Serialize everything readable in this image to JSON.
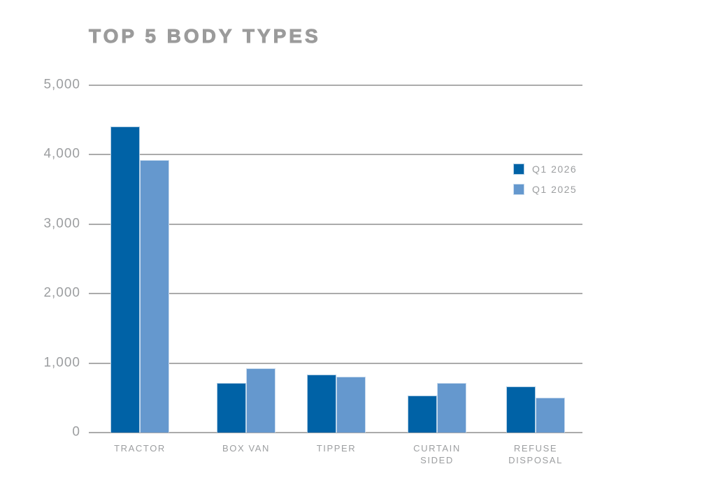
{
  "chart": {
    "title_color": "#9b9b9b",
    "text_color": "#9c9ea0",
    "gridline_color": "#ababab",
    "background_color": "#ffffff"
  },
  "chart_data": {
    "type": "bar",
    "title": "TOP 5 BODY TYPES",
    "categories": [
      "TRACTOR",
      "BOX VAN",
      "TIPPER",
      "CURTAIN SIDED",
      "REFUSE DISPOSAL"
    ],
    "category_label_lines": [
      [
        "TRACTOR"
      ],
      [
        "BOX VAN"
      ],
      [
        "TIPPER"
      ],
      [
        "CURTAIN",
        "SIDED"
      ],
      [
        "REFUSE",
        "DISPOSAL"
      ]
    ],
    "series": [
      {
        "name": "Q1 2026",
        "color": "#0062a6",
        "values": [
          4410,
          710,
          840,
          530,
          660
        ]
      },
      {
        "name": "Q1 2025",
        "color": "#6598ce",
        "values": [
          3920,
          930,
          800,
          710,
          500
        ]
      }
    ],
    "xlabel": "",
    "ylabel": "",
    "ylim": [
      0,
      5000
    ],
    "ytick_interval": 1000,
    "ytick_labels": [
      "0",
      "1,000",
      "2,000",
      "3,000",
      "4,000",
      "5,000"
    ],
    "grid": true,
    "legend_position": "right"
  }
}
